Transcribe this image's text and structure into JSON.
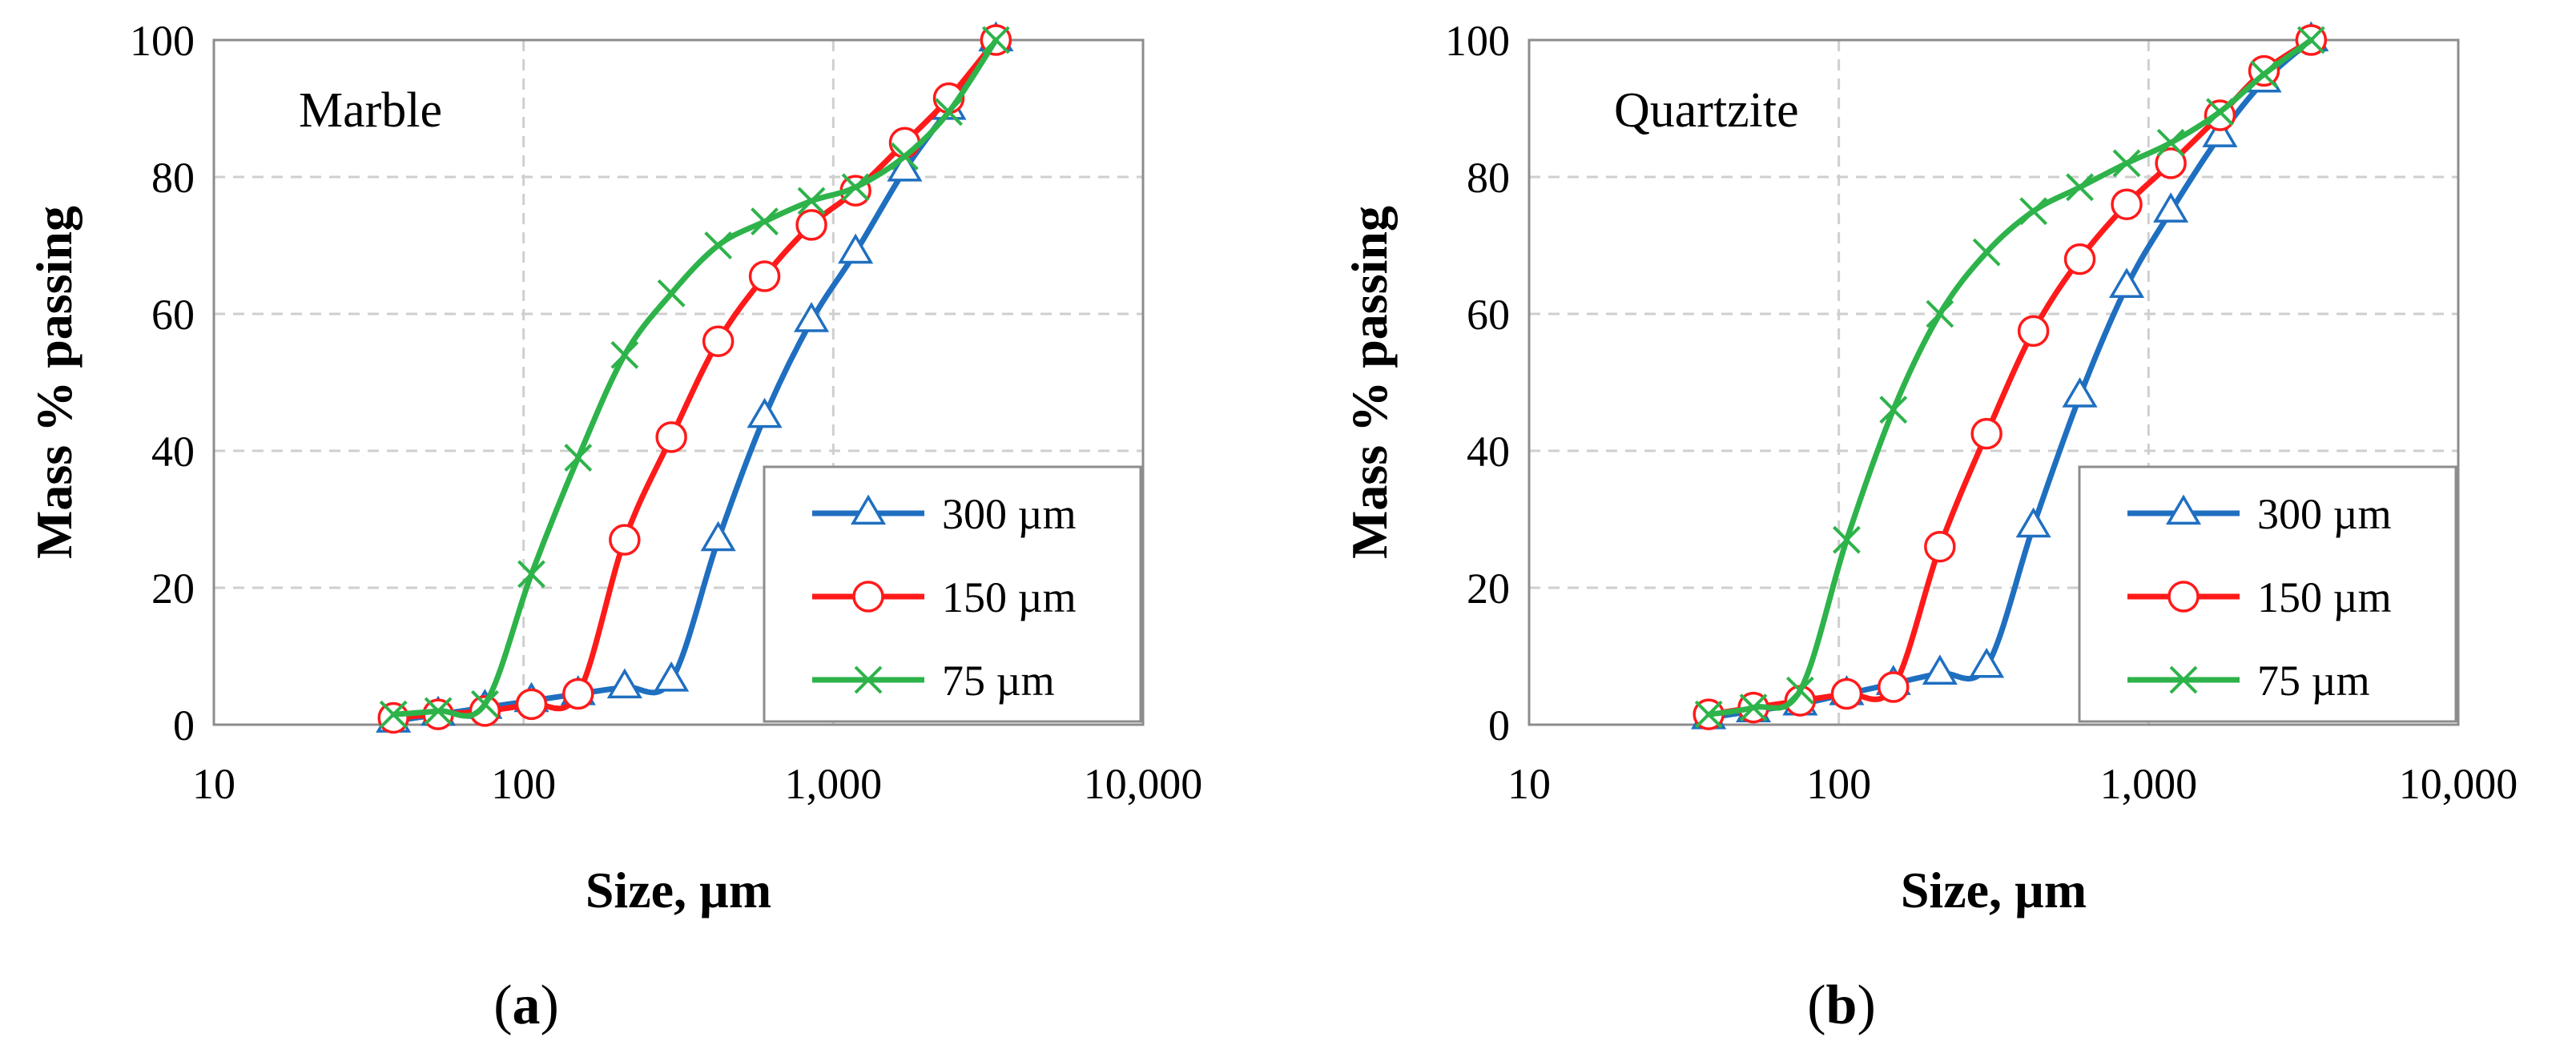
{
  "chart_data": [
    {
      "type": "line",
      "panel_label": "(a)",
      "panel_letter": "a",
      "annotation": "Marble",
      "xlabel": "Size, µm",
      "ylabel": "Mass % passing",
      "x_scale": "log",
      "xlim": [
        10,
        10000
      ],
      "ylim": [
        0,
        100
      ],
      "x_ticks": [
        10,
        100,
        1000,
        10000
      ],
      "x_tick_labels": [
        "10",
        "100",
        "1,000",
        "10,000"
      ],
      "y_ticks": [
        0,
        20,
        40,
        60,
        80,
        100
      ],
      "y_tick_labels": [
        "0",
        "20",
        "40",
        "60",
        "80",
        "100"
      ],
      "grid": true,
      "legend_position": "bottom-right",
      "series": [
        {
          "name": "300 µm",
          "color": "#1f6fc0",
          "marker": "triangle",
          "x": [
            38,
            53,
            75,
            106,
            150,
            212,
            300,
            425,
            600,
            850,
            1180,
            1700,
            2360,
            3350
          ],
          "y": [
            0.5,
            1.5,
            2.5,
            3.5,
            4.5,
            5.5,
            6.5,
            27,
            45,
            59,
            69,
            81,
            90,
            100
          ]
        },
        {
          "name": "150 µm",
          "color": "#ff1a1a",
          "marker": "circle",
          "x": [
            38,
            53,
            75,
            106,
            150,
            212,
            300,
            425,
            600,
            850,
            1180,
            1700,
            2360,
            3350
          ],
          "y": [
            1,
            1.5,
            2,
            3,
            4.5,
            27,
            42,
            56,
            65.5,
            73,
            78,
            85,
            91.5,
            100
          ]
        },
        {
          "name": "75 µm",
          "color": "#2db34a",
          "marker": "x",
          "x": [
            38,
            53,
            75,
            106,
            150,
            212,
            300,
            425,
            600,
            850,
            1180,
            1700,
            2360,
            3350
          ],
          "y": [
            1.5,
            2,
            3,
            22,
            39,
            54,
            63,
            70,
            73.5,
            76.5,
            78.5,
            83,
            89.5,
            100
          ]
        }
      ]
    },
    {
      "type": "line",
      "panel_label": "(b)",
      "panel_letter": "b",
      "annotation": "Quartzite",
      "xlabel": "Size, µm",
      "ylabel": "Mass % passing",
      "x_scale": "log",
      "xlim": [
        10,
        10000
      ],
      "ylim": [
        0,
        100
      ],
      "x_ticks": [
        10,
        100,
        1000,
        10000
      ],
      "x_tick_labels": [
        "10",
        "100",
        "1,000",
        "10,000"
      ],
      "y_ticks": [
        0,
        20,
        40,
        60,
        80,
        100
      ],
      "y_tick_labels": [
        "0",
        "20",
        "40",
        "60",
        "80",
        "100"
      ],
      "grid": true,
      "legend_position": "bottom-right",
      "series": [
        {
          "name": "300 µm",
          "color": "#1f6fc0",
          "marker": "triangle",
          "x": [
            38,
            53,
            75,
            106,
            150,
            212,
            300,
            425,
            600,
            850,
            1180,
            1700,
            2360,
            3350
          ],
          "y": [
            1,
            2,
            3,
            4.5,
            6,
            7.5,
            8.5,
            29,
            48,
            64,
            75,
            86,
            94,
            100
          ]
        },
        {
          "name": "150 µm",
          "color": "#ff1a1a",
          "marker": "circle",
          "x": [
            38,
            53,
            75,
            106,
            150,
            212,
            300,
            425,
            600,
            850,
            1180,
            1700,
            2360,
            3350
          ],
          "y": [
            1.5,
            2.5,
            3.5,
            4.5,
            5.5,
            26,
            42.5,
            57.5,
            68,
            76,
            82,
            89,
            95.5,
            100
          ]
        },
        {
          "name": "75 µm",
          "color": "#2db34a",
          "marker": "x",
          "x": [
            38,
            53,
            75,
            106,
            150,
            212,
            300,
            425,
            600,
            850,
            1180,
            1700,
            2360,
            3350
          ],
          "y": [
            1.5,
            2.5,
            5,
            27,
            46,
            60,
            69,
            75,
            78.5,
            82,
            85,
            89.5,
            95,
            100
          ]
        }
      ]
    }
  ]
}
